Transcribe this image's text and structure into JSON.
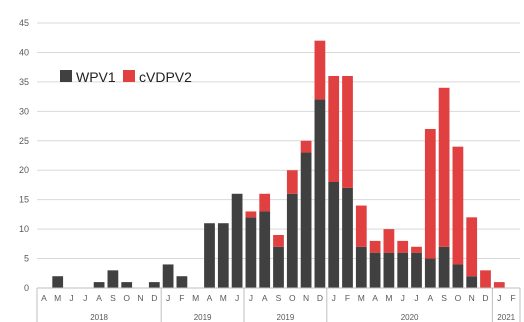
{
  "colors": {
    "wpv1": "#404040",
    "cvdpv2": "#e0403f",
    "grid": "#d9d9d9",
    "axis": "#bfbfbf"
  },
  "chart_data": {
    "type": "bar",
    "stacked": true,
    "grid": true,
    "legend_position": "top-left",
    "ylim": [
      0,
      45
    ],
    "yticks": [
      0,
      5,
      10,
      15,
      20,
      25,
      30,
      35,
      40,
      45
    ],
    "categories": [
      "A",
      "M",
      "J",
      "J",
      "A",
      "S",
      "O",
      "N",
      "D",
      "J",
      "F",
      "M",
      "A",
      "M",
      "J",
      "J",
      "A",
      "S",
      "O",
      "N",
      "D",
      "J",
      "F",
      "M",
      "A",
      "M",
      "J",
      "J",
      "A",
      "S",
      "O",
      "N",
      "D",
      "J",
      "F"
    ],
    "year_groups": [
      {
        "label": "2018",
        "start": 0,
        "end": 8
      },
      {
        "label": "2019",
        "start": 9,
        "end": 14
      },
      {
        "label": "2019",
        "start": 15,
        "end": 20
      },
      {
        "label": "2020",
        "start": 21,
        "end": 32
      },
      {
        "label": "2021",
        "start": 33,
        "end": 34
      }
    ],
    "series": [
      {
        "name": "WPV1",
        "values": [
          0,
          2,
          0,
          0,
          1,
          3,
          1,
          0,
          1,
          4,
          2,
          0,
          11,
          11,
          16,
          12,
          13,
          7,
          16,
          23,
          32,
          18,
          17,
          7,
          6,
          6,
          6,
          6,
          5,
          7,
          4,
          2,
          0,
          0,
          0
        ]
      },
      {
        "name": "cVDPV2",
        "values": [
          0,
          0,
          0,
          0,
          0,
          0,
          0,
          0,
          0,
          0,
          0,
          0,
          0,
          0,
          0,
          1,
          3,
          2,
          4,
          2,
          10,
          18,
          19,
          7,
          2,
          4,
          2,
          1,
          22,
          27,
          20,
          10,
          3,
          1,
          0
        ]
      }
    ]
  },
  "legend": [
    {
      "label": "WPV1",
      "color": "#404040"
    },
    {
      "label": "cVDPV2",
      "color": "#e0403f"
    }
  ]
}
